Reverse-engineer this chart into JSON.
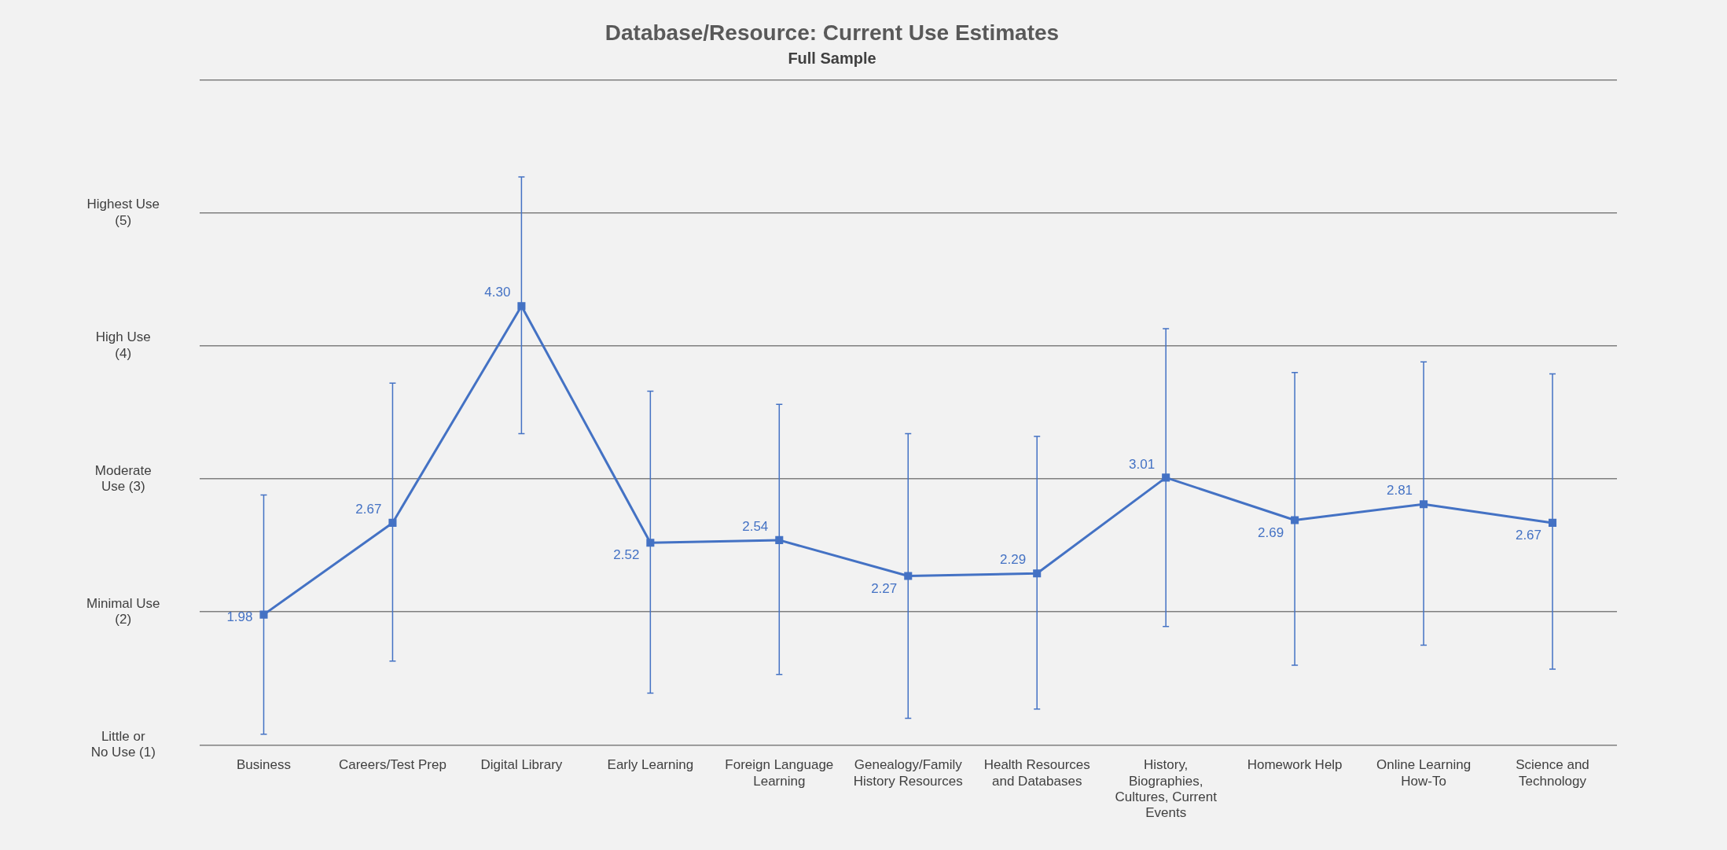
{
  "chart_data": {
    "type": "line",
    "title": "Database/Resource: Current Use Estimates",
    "subtitle": "Full Sample",
    "categories": [
      "Business",
      "Careers/Test Prep",
      "Digital Library",
      "Early Learning",
      "Foreign Language Learning",
      "Genealogy/Family History Resources",
      "Health Resources and Databases",
      "History, Biographies, Cultures, Current Events",
      "Homework Help",
      "Online Learning How-To",
      "Science and Technology"
    ],
    "series": [
      {
        "color": "#4472c4",
        "values": [
          1.98,
          2.67,
          4.3,
          2.52,
          2.54,
          2.27,
          2.29,
          3.01,
          2.69,
          2.81,
          2.67
        ],
        "value_labels": [
          "1.98",
          "2.67",
          "4.30",
          "2.52",
          "2.54",
          "2.27",
          "2.29",
          "3.01",
          "2.69",
          "2.81",
          "2.67"
        ],
        "errors": [
          [
            1.08,
            2.88
          ],
          [
            1.63,
            3.72
          ],
          [
            3.34,
            5.27
          ],
          [
            1.39,
            3.66
          ],
          [
            1.53,
            3.56
          ],
          [
            1.2,
            3.34
          ],
          [
            1.27,
            3.32
          ],
          [
            1.89,
            4.13
          ],
          [
            1.6,
            3.8
          ],
          [
            1.75,
            3.88
          ],
          [
            1.57,
            3.79
          ]
        ]
      }
    ],
    "ylim": [
      1,
      6
    ],
    "yticks": [
      {
        "value": 1,
        "label": "Little or No Use (1)"
      },
      {
        "value": 2,
        "label": "Minimal Use (2)"
      },
      {
        "value": 3,
        "label": "Moderate Use (3)"
      },
      {
        "value": 4,
        "label": "High Use (4)"
      },
      {
        "value": 5,
        "label": "Highest Use (5)"
      },
      {
        "value": 6,
        "label": null
      }
    ],
    "grid": "y",
    "marker": "square",
    "line_style": "solid",
    "legend": false
  }
}
